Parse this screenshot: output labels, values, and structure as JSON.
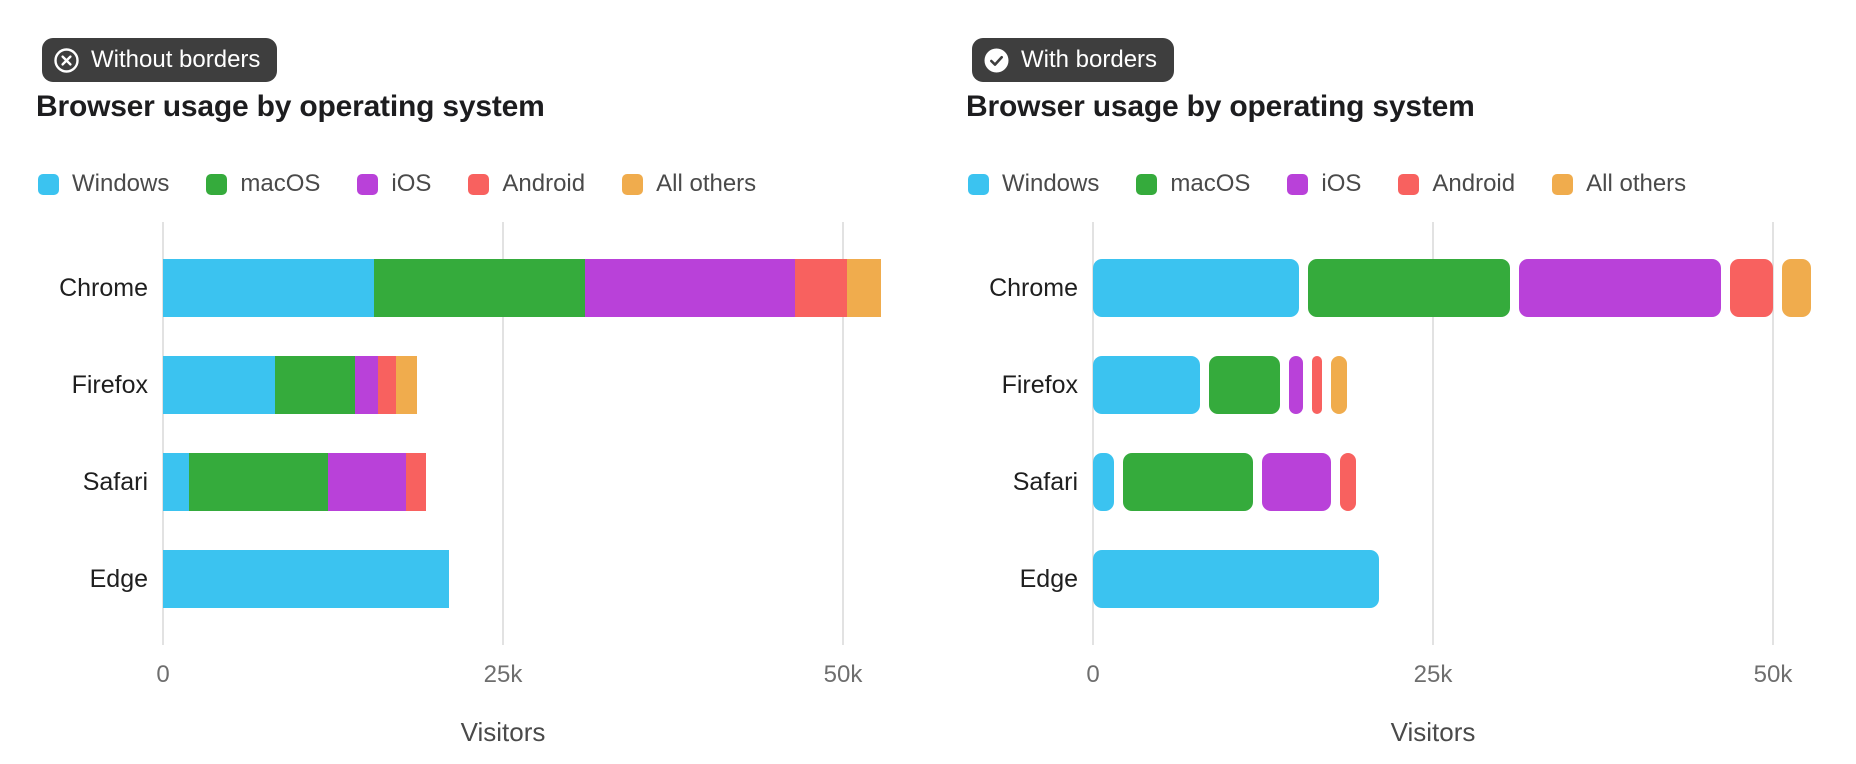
{
  "panels": [
    {
      "badge": {
        "label": "Without borders",
        "icon": "x-circle"
      },
      "title": "Browser usage by operating system",
      "variant": "flat"
    },
    {
      "badge": {
        "label": "With borders",
        "icon": "check-circle"
      },
      "title": "Browser usage by operating system",
      "variant": "bordered"
    }
  ],
  "chart_data": {
    "type": "bar",
    "orientation": "horizontal",
    "stacked": true,
    "title": "Browser usage by operating system",
    "categories": [
      "Chrome",
      "Firefox",
      "Safari",
      "Edge"
    ],
    "series": [
      {
        "name": "Windows",
        "color": "#3BC3F0",
        "values": [
          15500,
          8200,
          1900,
          21000
        ]
      },
      {
        "name": "macOS",
        "color": "#35AB3C",
        "values": [
          15500,
          5900,
          10200,
          0
        ]
      },
      {
        "name": "iOS",
        "color": "#B941D9",
        "values": [
          15500,
          1700,
          5750,
          0
        ]
      },
      {
        "name": "Android",
        "color": "#F8615F",
        "values": [
          3800,
          1350,
          1500,
          0
        ]
      },
      {
        "name": "All others",
        "color": "#F0AC4D",
        "values": [
          2500,
          1500,
          0,
          0
        ]
      }
    ],
    "xlabel": "Visitors",
    "x_ticks": [
      {
        "label": "0",
        "value": 0
      },
      {
        "label": "25k",
        "value": 25000
      },
      {
        "label": "50k",
        "value": 50000
      }
    ],
    "xlim": [
      0,
      53700
    ],
    "grid": "vertical",
    "legend_position": "top"
  },
  "style": {
    "badge_bg": "#3E3E3E",
    "gridline_color": "#e2e2e2",
    "title_color": "#1d1d1f",
    "tick_label_color": "#6e6e6e"
  }
}
